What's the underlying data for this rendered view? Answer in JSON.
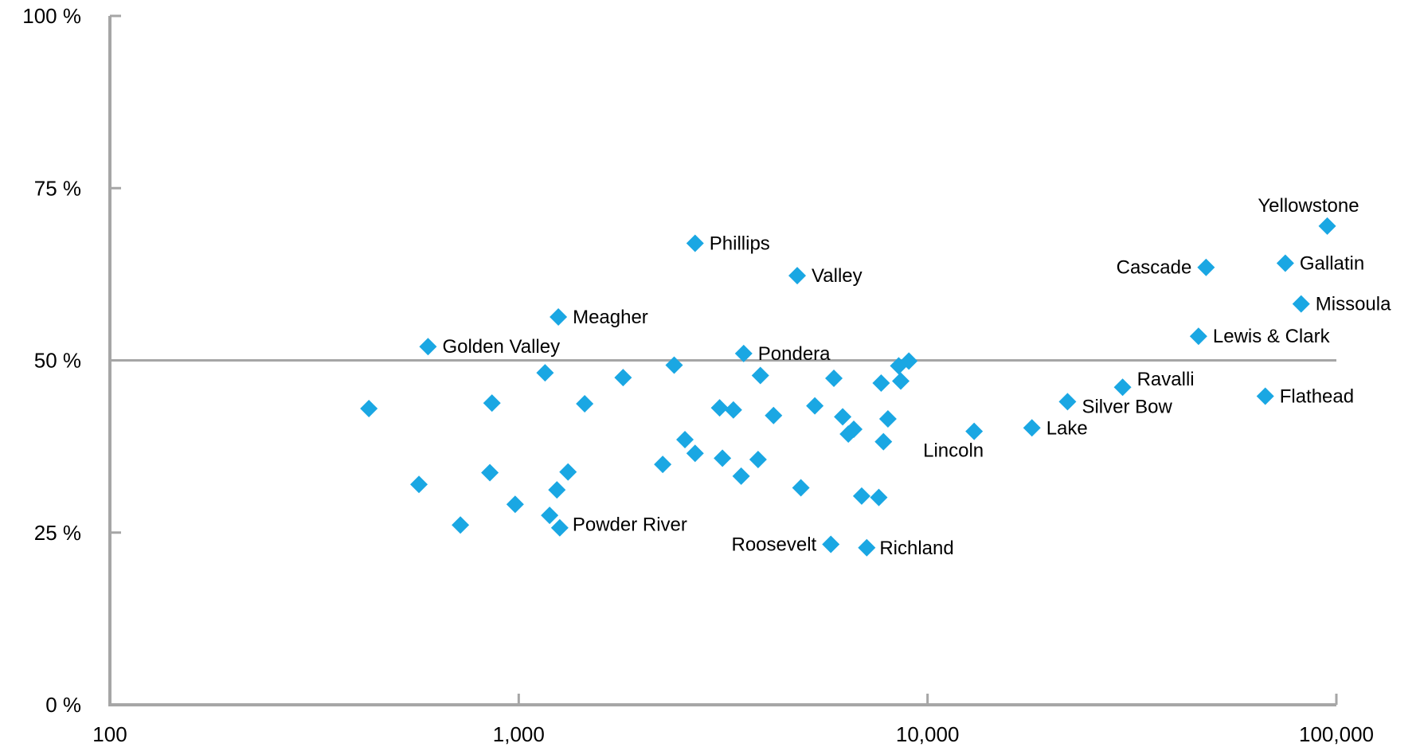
{
  "chart_data": {
    "type": "scatter",
    "title": "",
    "xlabel": "",
    "ylabel": "",
    "x_scale": "log",
    "xlim": [
      100,
      100000
    ],
    "ylim": [
      0,
      100
    ],
    "x_ticks": [
      100,
      1000,
      10000,
      100000
    ],
    "x_tick_labels": [
      "100",
      "1,000",
      "10,000",
      "100,000"
    ],
    "y_ticks": [
      0,
      25,
      50,
      75,
      100
    ],
    "y_tick_labels": [
      "0 %",
      "25 %",
      "50 %",
      "75 %",
      "100 %"
    ],
    "reference_line_y": 50,
    "marker": "diamond",
    "marker_color": "#1aa7e3",
    "axis_color": "#a6a6a6",
    "grid": false,
    "points": [
      {
        "x": 95000,
        "y": 69.5,
        "label": "Yellowstone"
      },
      {
        "x": 48000,
        "y": 63.5,
        "label": "Cascade"
      },
      {
        "x": 75000,
        "y": 64.1,
        "label": "Gallatin"
      },
      {
        "x": 82000,
        "y": 58.2,
        "label": "Missoula"
      },
      {
        "x": 46000,
        "y": 53.5,
        "label": "Lewis & Clark"
      },
      {
        "x": 67000,
        "y": 44.8,
        "label": "Flathead"
      },
      {
        "x": 30000,
        "y": 46.1,
        "label": "Ravalli"
      },
      {
        "x": 22000,
        "y": 44.0,
        "label": "Silver Bow"
      },
      {
        "x": 18000,
        "y": 40.2,
        "label": "Lake"
      },
      {
        "x": 13000,
        "y": 39.7,
        "label": "Lincoln"
      },
      {
        "x": 2700,
        "y": 67.0,
        "label": "Phillips"
      },
      {
        "x": 4800,
        "y": 62.3,
        "label": "Valley"
      },
      {
        "x": 1250,
        "y": 56.3,
        "label": "Meagher"
      },
      {
        "x": 600,
        "y": 52.0,
        "label": "Golden Valley"
      },
      {
        "x": 3550,
        "y": 51.0,
        "label": "Pondera"
      },
      {
        "x": 1260,
        "y": 25.7,
        "label": "Powder River"
      },
      {
        "x": 5800,
        "y": 23.3,
        "label": "Roosevelt"
      },
      {
        "x": 7100,
        "y": 22.8,
        "label": "Richland"
      },
      {
        "x": 430,
        "y": 43.0,
        "label": ""
      },
      {
        "x": 570,
        "y": 32.0,
        "label": ""
      },
      {
        "x": 720,
        "y": 26.1,
        "label": ""
      },
      {
        "x": 860,
        "y": 43.8,
        "label": ""
      },
      {
        "x": 850,
        "y": 33.7,
        "label": ""
      },
      {
        "x": 980,
        "y": 29.1,
        "label": ""
      },
      {
        "x": 1160,
        "y": 48.2,
        "label": ""
      },
      {
        "x": 1190,
        "y": 27.5,
        "label": ""
      },
      {
        "x": 1240,
        "y": 31.2,
        "label": ""
      },
      {
        "x": 1320,
        "y": 33.8,
        "label": ""
      },
      {
        "x": 1450,
        "y": 43.7,
        "label": ""
      },
      {
        "x": 1800,
        "y": 47.5,
        "label": ""
      },
      {
        "x": 2250,
        "y": 34.9,
        "label": ""
      },
      {
        "x": 2400,
        "y": 49.3,
        "label": ""
      },
      {
        "x": 2550,
        "y": 38.5,
        "label": ""
      },
      {
        "x": 2700,
        "y": 36.5,
        "label": ""
      },
      {
        "x": 3100,
        "y": 43.1,
        "label": ""
      },
      {
        "x": 3150,
        "y": 35.8,
        "label": ""
      },
      {
        "x": 3350,
        "y": 42.8,
        "label": ""
      },
      {
        "x": 3500,
        "y": 33.2,
        "label": ""
      },
      {
        "x": 3850,
        "y": 35.6,
        "label": ""
      },
      {
        "x": 3900,
        "y": 47.8,
        "label": ""
      },
      {
        "x": 4200,
        "y": 42.0,
        "label": ""
      },
      {
        "x": 4900,
        "y": 31.5,
        "label": ""
      },
      {
        "x": 5300,
        "y": 43.4,
        "label": ""
      },
      {
        "x": 5900,
        "y": 47.4,
        "label": ""
      },
      {
        "x": 6200,
        "y": 41.8,
        "label": ""
      },
      {
        "x": 6400,
        "y": 39.3,
        "label": ""
      },
      {
        "x": 6600,
        "y": 40.0,
        "label": ""
      },
      {
        "x": 6900,
        "y": 30.3,
        "label": ""
      },
      {
        "x": 7600,
        "y": 30.1,
        "label": ""
      },
      {
        "x": 7700,
        "y": 46.7,
        "label": ""
      },
      {
        "x": 7800,
        "y": 38.2,
        "label": ""
      },
      {
        "x": 8000,
        "y": 41.5,
        "label": ""
      },
      {
        "x": 8500,
        "y": 49.2,
        "label": ""
      },
      {
        "x": 8600,
        "y": 47.0,
        "label": ""
      },
      {
        "x": 9000,
        "y": 49.9,
        "label": ""
      }
    ]
  }
}
